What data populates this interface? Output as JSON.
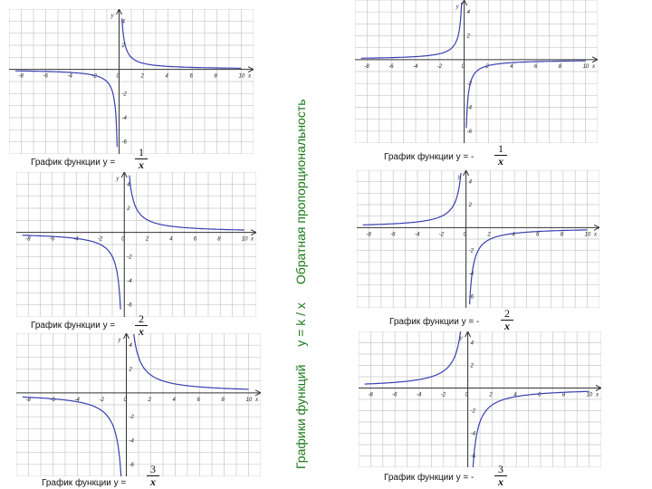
{
  "side_title": {
    "part1": "Графики функций",
    "part2": "y = k / x",
    "part3": "Обратная пропорциональность"
  },
  "graphs": [
    {
      "caption": "График функции у =",
      "sign": "",
      "numerator": "1",
      "denominator": "x",
      "k": 1
    },
    {
      "caption": "График функции у =",
      "sign": "",
      "numerator": "2",
      "denominator": "x",
      "k": 2
    },
    {
      "caption": "График функции у =",
      "sign": "",
      "numerator": "3",
      "denominator": "x",
      "k": 3
    },
    {
      "caption": "График функции у = -",
      "sign": "-",
      "numerator": "1",
      "denominator": "x",
      "k": -1
    },
    {
      "caption": "График функции у = -",
      "sign": "-",
      "numerator": "2",
      "denominator": "x",
      "k": -2
    },
    {
      "caption": "График функции у = -",
      "sign": "-",
      "numerator": "3",
      "denominator": "x",
      "k": -3
    }
  ],
  "axis": {
    "x_label": "x",
    "y_label": "y",
    "x_ticks": [
      "-8",
      "-6",
      "-4",
      "-2",
      "0",
      "2",
      "4",
      "6",
      "8",
      "10"
    ],
    "y_ticks": [
      "4",
      "2",
      "-2",
      "-4",
      "-6"
    ]
  },
  "colors": {
    "curve": "#3a3fb0",
    "grid": "#c8c8c8",
    "axis": "#333333",
    "title": "#1a7a1a"
  }
}
